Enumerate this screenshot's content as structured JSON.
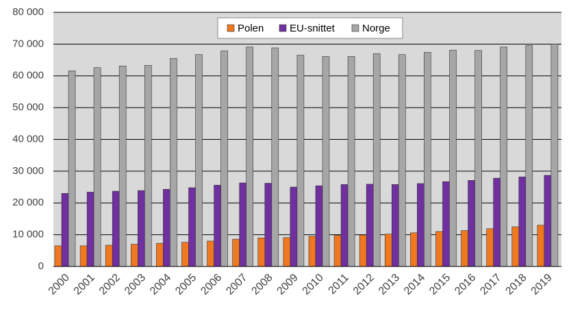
{
  "chart_data": {
    "type": "bar",
    "categories": [
      "2000",
      "2001",
      "2002",
      "2003",
      "2004",
      "2005",
      "2006",
      "2007",
      "2008",
      "2009",
      "2010",
      "2011",
      "2012",
      "2013",
      "2014",
      "2015",
      "2016",
      "2017",
      "2018",
      "2019"
    ],
    "series": [
      {
        "name": "Polen",
        "color": "#f07820",
        "values": [
          6500,
          6500,
          6700,
          7000,
          7300,
          7600,
          8000,
          8600,
          9000,
          9100,
          9500,
          9800,
          9900,
          10200,
          10600,
          11000,
          11300,
          11900,
          12500,
          13000
        ]
      },
      {
        "name": "EU-snittet",
        "color": "#7030a0",
        "values": [
          23000,
          23400,
          23700,
          23900,
          24300,
          24800,
          25600,
          26300,
          26200,
          25000,
          25400,
          25800,
          25900,
          25800,
          26100,
          26700,
          27100,
          27800,
          28200,
          28700
        ]
      },
      {
        "name": "Norge",
        "color": "#a6a6a6",
        "values": [
          61600,
          62600,
          63100,
          63300,
          65500,
          66700,
          67900,
          69100,
          68800,
          66500,
          66100,
          66100,
          67000,
          66700,
          67400,
          68100,
          68000,
          69100,
          69600,
          70000
        ]
      }
    ],
    "ylim": [
      0,
      80000
    ],
    "yticks": [
      0,
      {
        "value": 10000,
        "label": "10 000"
      },
      {
        "value": 20000,
        "label": "20 000"
      },
      {
        "value": 30000,
        "label": "30 000"
      },
      {
        "value": 40000,
        "label": "40 000"
      },
      {
        "value": 50000,
        "label": "50 000"
      },
      {
        "value": 60000,
        "label": "60 000"
      },
      {
        "value": 70000,
        "label": "70 000"
      },
      {
        "value": 80000,
        "label": "80 000"
      }
    ],
    "grid": true,
    "legend": "top"
  }
}
